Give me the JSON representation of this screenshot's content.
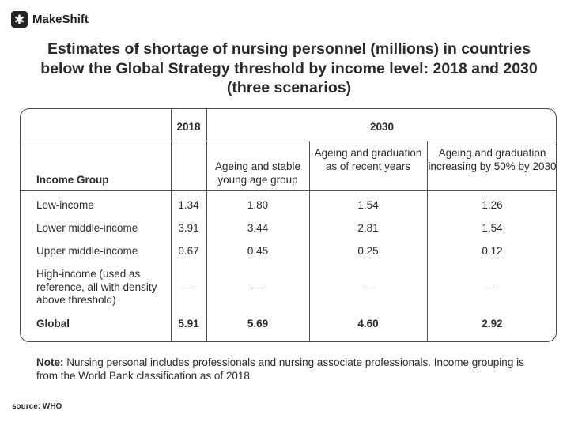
{
  "brand": {
    "name": "MakeShift"
  },
  "title": "Estimates of shortage of nursing personnel (millions) in countries below the Global  Strategy threshold by income level: 2018 and 2030 (three scenarios)",
  "table": {
    "header_2018": "2018",
    "header_2030": "2030",
    "col_income_group": "Income Group",
    "scenarios": [
      "Ageing and stable young age group",
      "Ageing and graduation as of recent years",
      "Ageing and graduation increasing by 50% by 2030"
    ],
    "rows": [
      {
        "label": "Low-income",
        "y2018": "1.34",
        "s1": "1.80",
        "s2": "1.54",
        "s3": "1.26"
      },
      {
        "label": "Lower middle-income",
        "y2018": "3.91",
        "s1": "3.44",
        "s2": "2.81",
        "s3": "1.54"
      },
      {
        "label": "Upper middle-income",
        "y2018": "0.67",
        "s1": "0.45",
        "s2": "0.25",
        "s3": "0.12"
      },
      {
        "label": "High-income (used as reference, all with density above threshold)",
        "y2018": "—",
        "s1": "—",
        "s2": "—",
        "s3": "—"
      },
      {
        "label": "Global",
        "y2018": "5.91",
        "s1": "5.69",
        "s2": "4.60",
        "s3": "2.92"
      }
    ]
  },
  "note": {
    "label": "Note:",
    "text": " Nursing personal includes professionals and nursing associate professionals. Income grouping is from the World Bank classification as of 2018"
  },
  "source": "source: WHO"
}
